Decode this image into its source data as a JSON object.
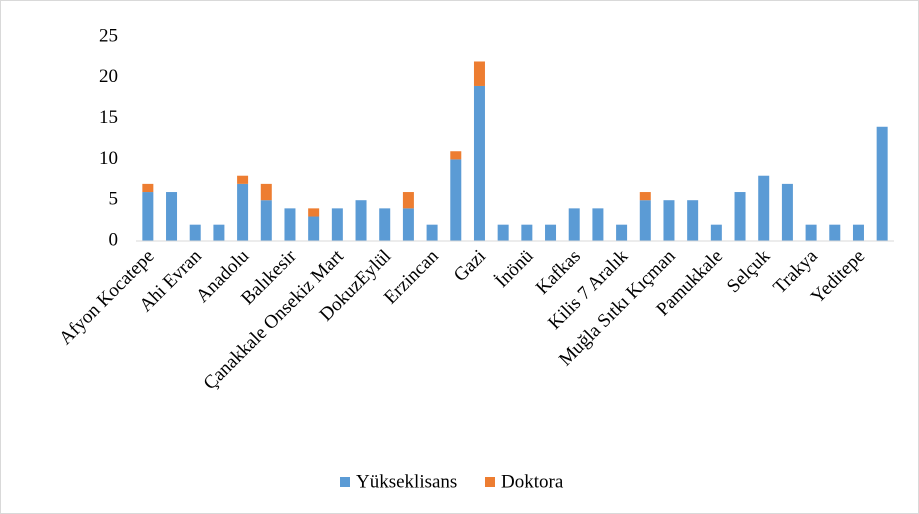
{
  "chart_data": {
    "type": "bar",
    "stacked": true,
    "categories": [
      "Afyon Kocatepe",
      null,
      "Ahi Evran",
      null,
      "Anadolu",
      null,
      "Balıkesir",
      null,
      "Çanakkale Onsekiz Mart",
      null,
      "DokuzEylül",
      null,
      "Erzincan",
      null,
      "Gazi",
      null,
      "İnönü",
      null,
      "Kafkas",
      null,
      "Kilis 7 Aralık",
      null,
      "Muğla Sıtkı Kıçman",
      null,
      "Pamukkale",
      null,
      "Selçuk",
      null,
      "Trakya",
      null,
      "Yeditepe",
      null
    ],
    "series": [
      {
        "name": "Yükseklisans",
        "color": "#5b9bd5",
        "values": [
          6,
          6,
          2,
          2,
          7,
          5,
          4,
          3,
          4,
          5,
          4,
          4,
          2,
          10,
          19,
          2,
          2,
          2,
          4,
          4,
          2,
          5,
          5,
          5,
          2,
          6,
          8,
          7,
          2,
          2,
          2,
          14
        ]
      },
      {
        "name": "Doktora",
        "color": "#ed7d31",
        "values": [
          1,
          0,
          0,
          0,
          1,
          2,
          0,
          1,
          0,
          0,
          0,
          2,
          0,
          1,
          3,
          0,
          0,
          0,
          0,
          0,
          0,
          1,
          0,
          0,
          0,
          0,
          0,
          0,
          0,
          0,
          0,
          0
        ]
      }
    ],
    "ylim": [
      0,
      25
    ],
    "yticks": [
      0,
      5,
      10,
      15,
      20,
      25
    ],
    "grid": false,
    "legend": "bottom"
  }
}
